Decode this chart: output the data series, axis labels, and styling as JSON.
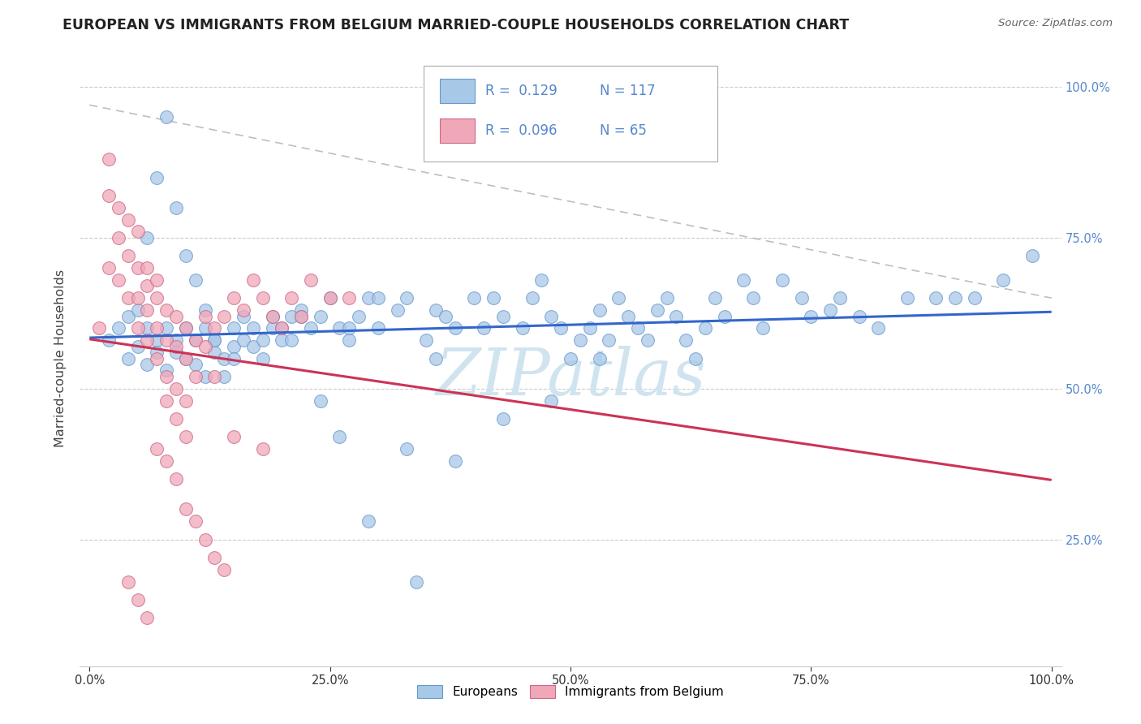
{
  "title": "EUROPEAN VS IMMIGRANTS FROM BELGIUM MARRIED-COUPLE HOUSEHOLDS CORRELATION CHART",
  "source": "Source: ZipAtlas.com",
  "ylabel": "Married-couple Households",
  "blue_color": "#a8c8e8",
  "blue_edge_color": "#6699cc",
  "pink_color": "#f0a8b8",
  "pink_edge_color": "#cc6688",
  "blue_line_color": "#3366cc",
  "pink_line_color": "#cc3355",
  "grid_color": "#cccccc",
  "watermark_color": "#d0e4f0",
  "R_blue": 0.129,
  "N_blue": 117,
  "R_pink": 0.096,
  "N_pink": 65,
  "legend_blue_color": "#a8c8e8",
  "legend_pink_color": "#f0a8b8",
  "legend_text_color": "#5588cc",
  "y_tick_color": "#5588cc",
  "x_tick_color": "#333333",
  "blue_x": [
    0.02,
    0.03,
    0.04,
    0.04,
    0.05,
    0.05,
    0.06,
    0.06,
    0.07,
    0.07,
    0.08,
    0.08,
    0.09,
    0.09,
    0.1,
    0.1,
    0.11,
    0.11,
    0.12,
    0.12,
    0.13,
    0.13,
    0.14,
    0.15,
    0.15,
    0.16,
    0.16,
    0.17,
    0.17,
    0.18,
    0.18,
    0.19,
    0.19,
    0.2,
    0.2,
    0.21,
    0.21,
    0.22,
    0.23,
    0.24,
    0.25,
    0.26,
    0.27,
    0.28,
    0.29,
    0.3,
    0.32,
    0.33,
    0.35,
    0.36,
    0.37,
    0.38,
    0.4,
    0.41,
    0.42,
    0.43,
    0.45,
    0.46,
    0.47,
    0.48,
    0.49,
    0.5,
    0.51,
    0.52,
    0.53,
    0.54,
    0.55,
    0.56,
    0.57,
    0.58,
    0.59,
    0.6,
    0.61,
    0.62,
    0.63,
    0.64,
    0.65,
    0.66,
    0.68,
    0.69,
    0.7,
    0.72,
    0.74,
    0.75,
    0.77,
    0.78,
    0.8,
    0.82,
    0.85,
    0.88,
    0.9,
    0.92,
    0.95,
    0.98,
    0.43,
    0.48,
    0.53,
    0.33,
    0.38,
    0.29,
    0.34,
    0.24,
    0.26,
    0.15,
    0.07,
    0.08,
    0.09,
    0.1,
    0.11,
    0.12,
    0.13,
    0.14,
    0.06,
    0.22,
    0.27,
    0.3,
    0.36
  ],
  "blue_y": [
    0.58,
    0.6,
    0.55,
    0.62,
    0.63,
    0.57,
    0.6,
    0.54,
    0.58,
    0.56,
    0.6,
    0.53,
    0.58,
    0.56,
    0.55,
    0.6,
    0.54,
    0.58,
    0.52,
    0.6,
    0.56,
    0.58,
    0.55,
    0.57,
    0.6,
    0.58,
    0.62,
    0.57,
    0.6,
    0.58,
    0.55,
    0.6,
    0.62,
    0.58,
    0.6,
    0.62,
    0.58,
    0.63,
    0.6,
    0.62,
    0.65,
    0.6,
    0.58,
    0.62,
    0.65,
    0.6,
    0.63,
    0.65,
    0.58,
    0.63,
    0.62,
    0.6,
    0.65,
    0.6,
    0.65,
    0.62,
    0.6,
    0.65,
    0.68,
    0.62,
    0.6,
    0.55,
    0.58,
    0.6,
    0.63,
    0.58,
    0.65,
    0.62,
    0.6,
    0.58,
    0.63,
    0.65,
    0.62,
    0.58,
    0.55,
    0.6,
    0.65,
    0.62,
    0.68,
    0.65,
    0.6,
    0.68,
    0.65,
    0.62,
    0.63,
    0.65,
    0.62,
    0.6,
    0.65,
    0.65,
    0.65,
    0.65,
    0.68,
    0.72,
    0.45,
    0.48,
    0.55,
    0.4,
    0.38,
    0.28,
    0.18,
    0.48,
    0.42,
    0.55,
    0.85,
    0.95,
    0.8,
    0.72,
    0.68,
    0.63,
    0.58,
    0.52,
    0.75,
    0.62,
    0.6,
    0.65,
    0.55
  ],
  "pink_x": [
    0.01,
    0.02,
    0.02,
    0.02,
    0.03,
    0.03,
    0.03,
    0.04,
    0.04,
    0.04,
    0.05,
    0.05,
    0.05,
    0.05,
    0.06,
    0.06,
    0.06,
    0.06,
    0.07,
    0.07,
    0.07,
    0.07,
    0.08,
    0.08,
    0.08,
    0.09,
    0.09,
    0.09,
    0.1,
    0.1,
    0.1,
    0.11,
    0.11,
    0.12,
    0.12,
    0.13,
    0.13,
    0.14,
    0.15,
    0.15,
    0.16,
    0.17,
    0.18,
    0.18,
    0.19,
    0.2,
    0.21,
    0.22,
    0.23,
    0.25,
    0.27,
    0.04,
    0.05,
    0.06,
    0.07,
    0.08,
    0.09,
    0.1,
    0.11,
    0.12,
    0.13,
    0.14,
    0.08,
    0.09,
    0.1
  ],
  "pink_y": [
    0.6,
    0.88,
    0.82,
    0.7,
    0.8,
    0.75,
    0.68,
    0.78,
    0.72,
    0.65,
    0.76,
    0.7,
    0.65,
    0.6,
    0.7,
    0.67,
    0.63,
    0.58,
    0.68,
    0.65,
    0.6,
    0.55,
    0.63,
    0.58,
    0.52,
    0.62,
    0.57,
    0.5,
    0.6,
    0.55,
    0.48,
    0.58,
    0.52,
    0.62,
    0.57,
    0.6,
    0.52,
    0.62,
    0.65,
    0.42,
    0.63,
    0.68,
    0.65,
    0.4,
    0.62,
    0.6,
    0.65,
    0.62,
    0.68,
    0.65,
    0.65,
    0.18,
    0.15,
    0.12,
    0.4,
    0.38,
    0.35,
    0.3,
    0.28,
    0.25,
    0.22,
    0.2,
    0.48,
    0.45,
    0.42
  ]
}
